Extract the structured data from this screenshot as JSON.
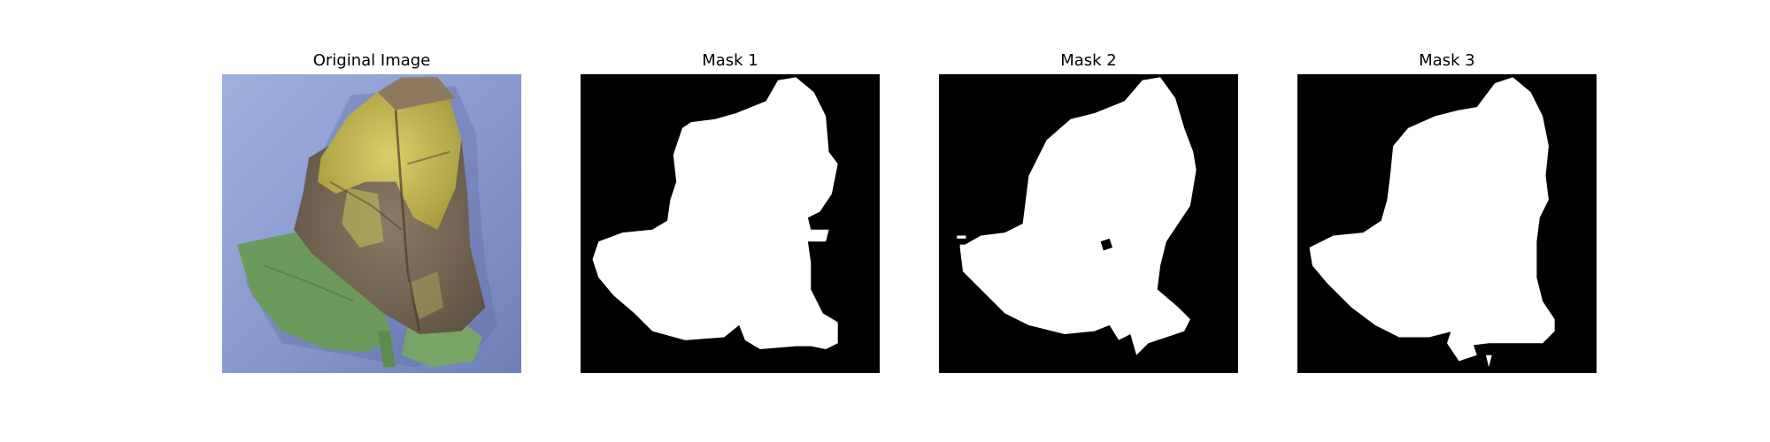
{
  "figure": {
    "panels": [
      {
        "title": "Original Image",
        "kind": "photo",
        "subject": "leaf-photo"
      },
      {
        "title": "Mask 1",
        "kind": "mask",
        "subject": "leaf-mask",
        "background_color": "#000000",
        "foreground_color": "#ffffff"
      },
      {
        "title": "Mask 2",
        "kind": "mask",
        "subject": "leaf-mask",
        "background_color": "#000000",
        "foreground_color": "#ffffff"
      },
      {
        "title": "Mask 3",
        "kind": "mask",
        "subject": "leaf-mask",
        "background_color": "#000000",
        "foreground_color": "#ffffff"
      }
    ],
    "colors": {
      "photo_background": "#8a9ad0",
      "leaf_green": "#6f9a5e",
      "leaf_yellow": "#c9bf55",
      "leaf_brown": "#7d6a55"
    }
  }
}
